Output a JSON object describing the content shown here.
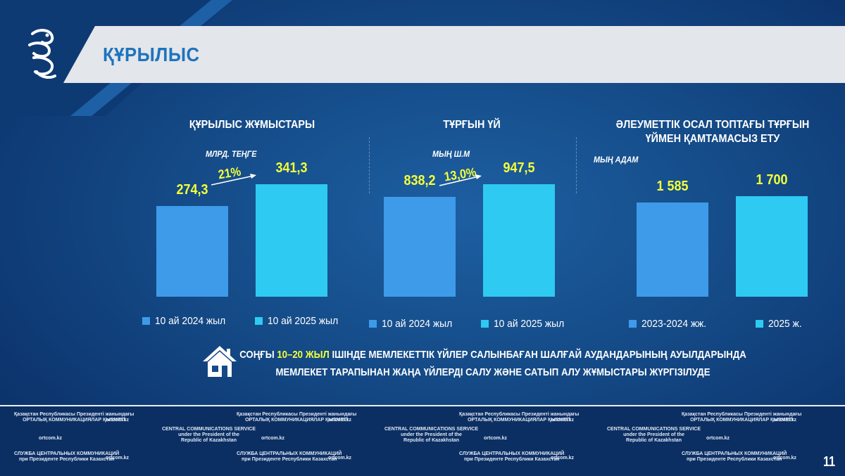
{
  "header": {
    "title": "ҚҰРЫЛЫС"
  },
  "colors": {
    "bar_prev": "#3d9be9",
    "bar_curr": "#2ecaf2",
    "value_text": "#f4ff3a",
    "title_bar": "#e3e6ea",
    "title_text": "#1e73be"
  },
  "chart_data": [
    {
      "type": "bar",
      "title": "ҚҰРЫЛЫС ЖҰМЫСТАРЫ",
      "unit": "МЛРД. ТЕҢГЕ",
      "categories": [
        "10 ай 2024 жыл",
        "10 ай 2025 жыл"
      ],
      "values": [
        274.3,
        341.3
      ],
      "value_labels": [
        "274,3",
        "341,3"
      ],
      "growth_label": "21%",
      "ylim": [
        0,
        400
      ]
    },
    {
      "type": "bar",
      "title": "ТҰРҒЫН ҮЙ",
      "unit": "МЫҢ Ш.М",
      "categories": [
        "10 ай 2024 жыл",
        "10 ай 2025 жыл"
      ],
      "values": [
        838.2,
        947.5
      ],
      "value_labels": [
        "838,2",
        "947,5"
      ],
      "growth_label": "13,0%",
      "ylim": [
        0,
        1110
      ]
    },
    {
      "type": "bar",
      "title": "ӘЛЕУМЕТТІК ОСАЛ ТОПТАҒЫ ТҰРҒЫН ҮЙМЕН ҚАМТАМАСЫЗ ЕТУ",
      "unit": "МЫҢ АДАМ",
      "categories": [
        "2023-2024 жж.",
        "2025 ж."
      ],
      "values": [
        1585,
        1700
      ],
      "value_labels": [
        "1 585",
        "1 700"
      ],
      "ylim": [
        0,
        2230
      ]
    }
  ],
  "note": {
    "icon": "house-icon",
    "line1_prefix": "СОҢҒЫ ",
    "line1_highlight": "10–20 ЖЫЛ",
    "line1_suffix": " ІШІНДЕ МЕМЛЕКЕТТІК ҮЙЛЕР САЛЫНБАҒАН ШАЛҒАЙ АУДАНДАРЫНЫҢ АУЫЛДАРЫНДА",
    "line2": "МЕМЛЕКЕТ ТАРАПЫНАН ЖАҢА ҮЙЛЕРДІ САЛУ ЖӘНЕ САТЫП АЛУ ЖҰМЫСТАРЫ ЖҮРГІЗІЛУДЕ"
  },
  "footer": {
    "kz_line1": "Қазақстан Республикасы Президенті жанындағы",
    "kz_line2": "ОРТАЛЫҚ КОММУНИКАЦИЯЛАР ҚЫЗМЕТІ",
    "en_line1": "CENTRAL COMMUNICATIONS SERVICE",
    "en_line2": "under the President of the",
    "en_line3": "Republic of Kazakhstan",
    "ru_line1": "СЛУЖБА ЦЕНТРАЛЬНЫХ КОММУНИКАЦИЙ",
    "ru_line2": "при Президенте Республики Казахстан",
    "site": "ortcom.kz"
  },
  "page_number": "11"
}
